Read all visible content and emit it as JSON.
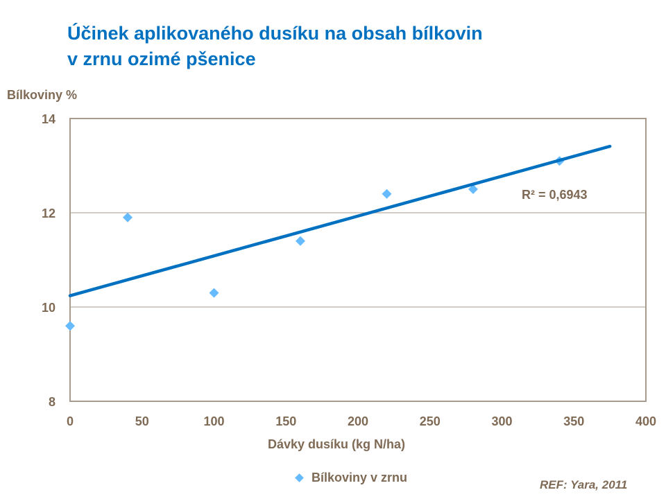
{
  "title_line1": "Účinek aplikovaného dusíku na obsah bílkovin",
  "title_line2": "v zrnu ozimé pšenice",
  "reference": "REF: Yara, 2011",
  "colors": {
    "title": "#0070C0",
    "text": "#7F6A55",
    "axis": "#A89A8C",
    "gridline": "#B8ADA2",
    "marker": "#66BBFF",
    "trendline": "#0070C0"
  },
  "chart_data": {
    "type": "scatter",
    "title": "Účinek aplikovaného dusíku na obsah bílkovin v zrnu ozimé pšenice",
    "xlabel": "Dávky dusíku (kg N/ha)",
    "ylabel": "Bílkoviny %",
    "xlim": [
      0,
      400
    ],
    "ylim": [
      8,
      14
    ],
    "x_ticks": [
      0,
      50,
      100,
      150,
      200,
      250,
      300,
      350,
      400
    ],
    "y_ticks": [
      8,
      10,
      12,
      14
    ],
    "grid": "horizontal",
    "legend_position": "bottom",
    "series": [
      {
        "name": "Bílkoviny v zrnu",
        "marker": "diamond",
        "x": [
          0,
          40,
          100,
          160,
          220,
          280,
          340
        ],
        "y": [
          9.6,
          11.9,
          10.3,
          11.4,
          12.4,
          12.5,
          13.1
        ]
      }
    ],
    "trendline": {
      "type": "linear",
      "x_range": [
        0,
        375
      ],
      "y_range": [
        10.24,
        13.41
      ],
      "r_squared_label": "R² = 0,6943",
      "r_squared": 0.6943
    }
  }
}
